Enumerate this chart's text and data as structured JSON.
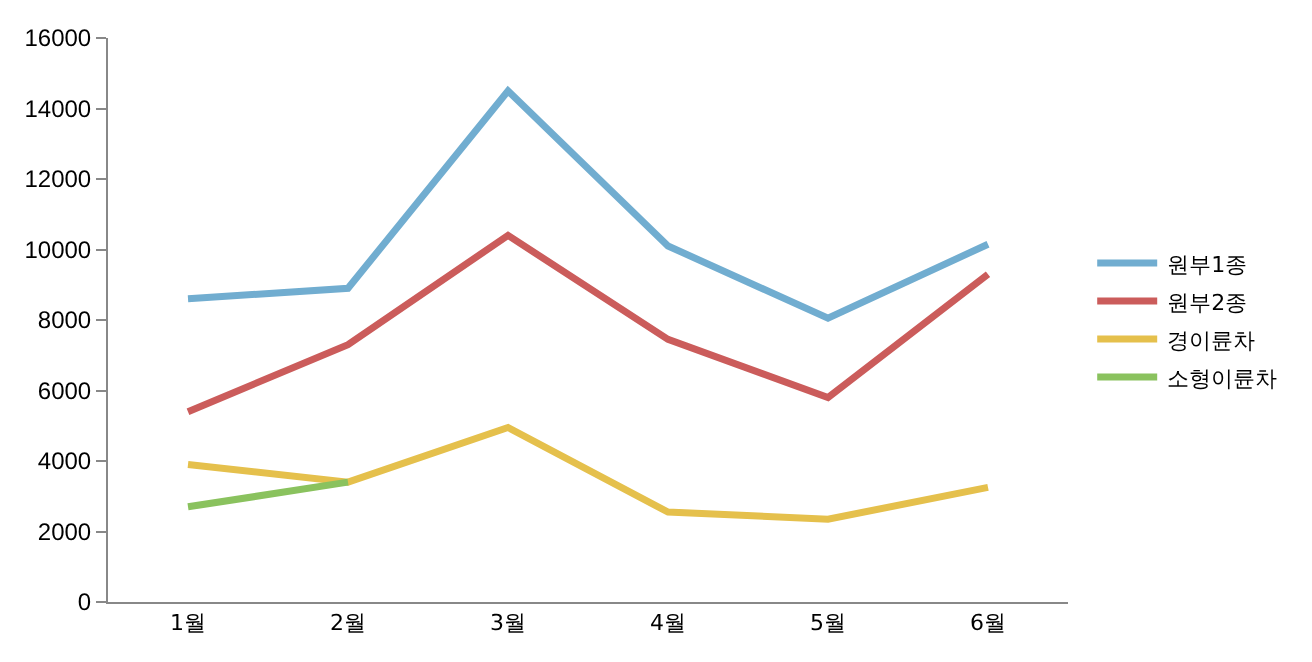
{
  "chart_data": {
    "type": "line",
    "categories": [
      "1월",
      "2월",
      "3월",
      "4월",
      "5월",
      "6월"
    ],
    "series": [
      {
        "name": "원부1종",
        "color": "#71add0",
        "values": [
          8600,
          8900,
          14500,
          10100,
          8050,
          10150
        ]
      },
      {
        "name": "원부2종",
        "color": "#cb5c5b",
        "values": [
          5400,
          7300,
          10400,
          7450,
          5800,
          9300
        ]
      },
      {
        "name": "경이륜차",
        "color": "#e5c04c",
        "values": [
          3900,
          3400,
          4950,
          2550,
          2350,
          3250
        ]
      },
      {
        "name": "소형이륜차",
        "color": "#8ac25e",
        "values": [
          2700,
          3400,
          null,
          null,
          null,
          null
        ]
      }
    ],
    "ylim": [
      0,
      16000
    ],
    "yticks": [
      0,
      2000,
      4000,
      6000,
      8000,
      10000,
      12000,
      14000,
      16000
    ],
    "legend": "right",
    "marker": "none",
    "line_style": "solid"
  }
}
